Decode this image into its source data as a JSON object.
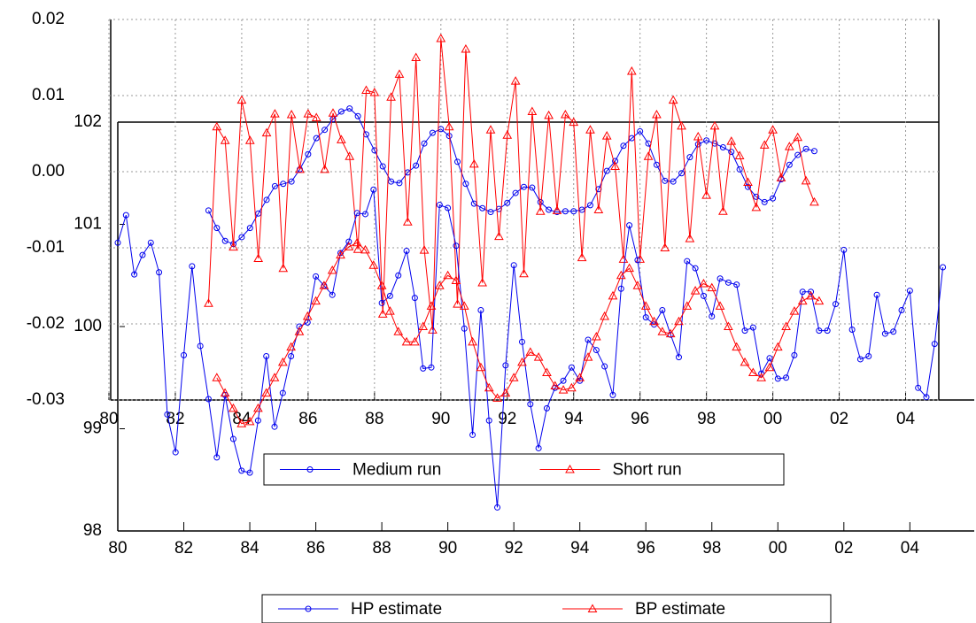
{
  "chart_data": [
    {
      "type": "line",
      "xlim": [
        1980,
        2005.95
      ],
      "ylim": [
        98,
        102
      ],
      "xticks": [
        {
          "value": 1980,
          "label": "80"
        },
        {
          "value": 1982,
          "label": "82"
        },
        {
          "value": 1984,
          "label": "84"
        },
        {
          "value": 1986,
          "label": "86"
        },
        {
          "value": 1988,
          "label": "88"
        },
        {
          "value": 1990,
          "label": "90"
        },
        {
          "value": 1992,
          "label": "92"
        },
        {
          "value": 1994,
          "label": "94"
        },
        {
          "value": 1996,
          "label": "96"
        },
        {
          "value": 1998,
          "label": "98"
        },
        {
          "value": 2000,
          "label": "00"
        },
        {
          "value": 2002,
          "label": "02"
        },
        {
          "value": 2004,
          "label": "04"
        }
      ],
      "yticks": [
        98,
        99,
        100,
        101,
        102
      ],
      "grid": false,
      "series": [
        {
          "name": "HP estimate",
          "color": "#0000ee",
          "marker": "circle",
          "x": [
            1980,
            1980.25,
            1980.5,
            1980.75,
            1981,
            1981.25,
            1981.5,
            1981.75,
            1982,
            1982.25,
            1982.5,
            1982.75,
            1983,
            1983.25,
            1983.5,
            1983.75,
            1984,
            1984.25,
            1984.5,
            1984.75,
            1985,
            1985.25,
            1985.5,
            1985.75,
            1986,
            1986.25,
            1986.5,
            1986.75,
            1987,
            1987.25,
            1987.5,
            1987.75,
            1988,
            1988.25,
            1988.5,
            1988.75,
            1989,
            1989.25,
            1989.5,
            1989.75,
            1990,
            1990.25,
            1990.5,
            1990.75,
            1991,
            1991.25,
            1991.5,
            1991.75,
            1992,
            1992.25,
            1992.5,
            1992.75,
            1993,
            1993.25,
            1993.5,
            1993.75,
            1994,
            1994.25,
            1994.5,
            1994.75,
            1995,
            1995.25,
            1995.5,
            1995.75,
            1996,
            1996.25,
            1996.5,
            1996.75,
            1997,
            1997.25,
            1997.5,
            1997.75,
            1998,
            1998.25,
            1998.5,
            1998.75,
            1999,
            1999.25,
            1999.5,
            1999.75,
            2000,
            2000.25,
            2000.5,
            2000.75,
            2001,
            2001.25,
            2001.5,
            2001.75,
            2002,
            2002.25,
            2002.5,
            2002.75,
            2003,
            2003.25,
            2003.5,
            2003.75,
            2004,
            2004.25,
            2004.5,
            2004.75,
            2005
          ],
          "values": [
            100.82,
            101.09,
            100.51,
            100.7,
            100.82,
            100.53,
            99.14,
            98.77,
            99.72,
            100.59,
            99.81,
            99.29,
            98.72,
            99.33,
            98.9,
            98.59,
            98.57,
            99.08,
            99.71,
            99.02,
            99.35,
            99.71,
            100.0,
            100.04,
            100.49,
            100.4,
            100.31,
            100.72,
            100.83,
            101.11,
            101.1,
            101.34,
            100.23,
            100.3,
            100.5,
            100.74,
            100.28,
            99.59,
            99.6,
            101.19,
            101.16,
            100.79,
            99.98,
            98.94,
            100.16,
            99.08,
            98.23,
            99.62,
            100.6,
            99.85,
            99.24,
            98.81,
            99.2,
            99.4,
            99.47,
            99.6,
            99.47,
            99.87,
            99.77,
            99.61,
            99.33,
            100.37,
            100.99,
            100.65,
            100.09,
            100.02,
            100.16,
            99.92,
            99.7,
            100.64,
            100.57,
            100.3,
            100.1,
            100.47,
            100.43,
            100.41,
            99.96,
            99.99,
            99.54,
            99.69,
            99.49,
            99.5,
            99.72,
            100.34,
            100.34,
            99.96,
            99.96,
            100.22,
            100.75,
            99.97,
            99.68,
            99.71,
            100.31,
            99.93,
            99.95,
            100.16,
            100.35,
            99.4,
            99.31,
            99.83,
            100.58
          ]
        },
        {
          "name": "BP estimate",
          "color": "#ff0000",
          "marker": "triangle",
          "x": [
            1983,
            1983.25,
            1983.5,
            1983.75,
            1984,
            1984.25,
            1984.5,
            1984.75,
            1985,
            1985.25,
            1985.5,
            1985.75,
            1986,
            1986.25,
            1986.5,
            1986.75,
            1987,
            1987.25,
            1987.5,
            1987.75,
            1988,
            1988.25,
            1988.5,
            1988.75,
            1989,
            1989.25,
            1989.5,
            1989.75,
            1990,
            1990.25,
            1990.5,
            1990.75,
            1991,
            1991.25,
            1991.5,
            1991.75,
            1992,
            1992.25,
            1992.5,
            1992.75,
            1993,
            1993.25,
            1993.5,
            1993.75,
            1994,
            1994.25,
            1994.5,
            1994.75,
            1995,
            1995.25,
            1995.5,
            1995.75,
            1996,
            1996.25,
            1996.5,
            1996.75,
            1997,
            1997.25,
            1997.5,
            1997.75,
            1998,
            1998.25,
            1998.5,
            1998.75,
            1999,
            1999.25,
            1999.5,
            1999.75,
            2000,
            2000.25,
            2000.5,
            2000.75,
            2001,
            2001.25
          ],
          "values": [
            99.5,
            99.35,
            99.2,
            99.05,
            99.07,
            99.2,
            99.35,
            99.5,
            99.65,
            99.8,
            99.95,
            100.1,
            100.25,
            100.4,
            100.55,
            100.7,
            100.78,
            100.82,
            100.75,
            100.6,
            100.4,
            100.15,
            99.95,
            99.85,
            99.85,
            100.0,
            100.2,
            100.4,
            100.5,
            100.45,
            100.2,
            99.85,
            99.6,
            99.4,
            99.3,
            99.35,
            99.5,
            99.65,
            99.75,
            99.7,
            99.55,
            99.42,
            99.38,
            99.4,
            99.5,
            99.7,
            99.9,
            100.1,
            100.3,
            100.5,
            100.57,
            100.4,
            100.2,
            100.05,
            99.95,
            99.93,
            100.05,
            100.2,
            100.35,
            100.42,
            100.38,
            100.2,
            100.0,
            99.8,
            99.65,
            99.55,
            99.5,
            99.6,
            99.8,
            100.0,
            100.15,
            100.25,
            100.3,
            100.25
          ]
        }
      ]
    },
    {
      "type": "line",
      "xlim": [
        1980,
        2005
      ],
      "ylim": [
        -0.03,
        0.02
      ],
      "xticks": [
        {
          "value": 1980,
          "label": "80"
        },
        {
          "value": 1982,
          "label": "82"
        },
        {
          "value": 1984,
          "label": "84"
        },
        {
          "value": 1986,
          "label": "86"
        },
        {
          "value": 1988,
          "label": "88"
        },
        {
          "value": 1990,
          "label": "90"
        },
        {
          "value": 1992,
          "label": "92"
        },
        {
          "value": 1994,
          "label": "94"
        },
        {
          "value": 1996,
          "label": "96"
        },
        {
          "value": 1998,
          "label": "98"
        },
        {
          "value": 2000,
          "label": "00"
        },
        {
          "value": 2002,
          "label": "02"
        },
        {
          "value": 2004,
          "label": "04"
        }
      ],
      "yticks": [
        -0.03,
        -0.02,
        -0.01,
        {
          "value": 0,
          "label": "0.00"
        },
        0.01,
        0.02
      ],
      "grid": true,
      "series": [
        {
          "name": "Medium run",
          "color": "#0000ee",
          "marker": "circle",
          "x": [
            1983,
            1983.25,
            1983.5,
            1983.75,
            1984,
            1984.25,
            1984.5,
            1984.75,
            1985,
            1985.25,
            1985.5,
            1985.75,
            1986,
            1986.25,
            1986.5,
            1986.75,
            1987,
            1987.25,
            1987.5,
            1987.75,
            1988,
            1988.25,
            1988.5,
            1988.75,
            1989,
            1989.25,
            1989.5,
            1989.75,
            1990,
            1990.25,
            1990.5,
            1990.75,
            1991,
            1991.25,
            1991.5,
            1991.75,
            1992,
            1992.25,
            1992.5,
            1992.75,
            1993,
            1993.25,
            1993.5,
            1993.75,
            1994,
            1994.25,
            1994.5,
            1994.75,
            1995,
            1995.25,
            1995.5,
            1995.75,
            1996,
            1996.25,
            1996.5,
            1996.75,
            1997,
            1997.25,
            1997.5,
            1997.75,
            1998,
            1998.25,
            1998.5,
            1998.75,
            1999,
            1999.25,
            1999.5,
            1999.75,
            2000,
            2000.25,
            2000.5,
            2000.75,
            2001,
            2001.25
          ],
          "values": [
            -0.0051,
            -0.0074,
            -0.0091,
            -0.0095,
            -0.0086,
            -0.0074,
            -0.0055,
            -0.0037,
            -0.0019,
            -0.0016,
            -0.0013,
            0.0003,
            0.0023,
            0.0044,
            0.0055,
            0.0069,
            0.0079,
            0.0083,
            0.0073,
            0.0049,
            0.0028,
            0.0007,
            -0.0013,
            -0.0015,
            -0.0001,
            0.0008,
            0.0037,
            0.0051,
            0.0056,
            0.0047,
            0.0013,
            -0.0016,
            -0.0042,
            -0.0048,
            -0.0053,
            -0.0049,
            -0.0041,
            -0.0028,
            -0.002,
            -0.0021,
            -0.004,
            -0.005,
            -0.0053,
            -0.0052,
            -0.0052,
            -0.005,
            -0.0044,
            -0.0023,
            0.0001,
            0.0014,
            0.0034,
            0.0044,
            0.0053,
            0.0037,
            0.0009,
            -0.0012,
            -0.0013,
            -0.0002,
            0.0019,
            0.0036,
            0.0041,
            0.0037,
            0.0032,
            0.0026,
            0.0003,
            -0.002,
            -0.0033,
            -0.004,
            -0.0035,
            -0.001,
            0.0009,
            0.0022,
            0.003,
            0.0027
          ]
        },
        {
          "name": "Short run",
          "color": "#ff0000",
          "marker": "triangle",
          "x": [
            1983,
            1983.25,
            1983.5,
            1983.75,
            1984,
            1984.25,
            1984.5,
            1984.75,
            1985,
            1985.25,
            1985.5,
            1985.75,
            1986,
            1986.25,
            1986.5,
            1986.75,
            1987,
            1987.25,
            1987.5,
            1987.75,
            1988,
            1988.25,
            1988.5,
            1988.75,
            1989,
            1989.25,
            1989.5,
            1989.75,
            1990,
            1990.25,
            1990.5,
            1990.75,
            1991,
            1991.25,
            1991.5,
            1991.75,
            1992,
            1992.25,
            1992.5,
            1992.75,
            1993,
            1993.25,
            1993.5,
            1993.75,
            1994,
            1994.25,
            1994.5,
            1994.75,
            1995,
            1995.25,
            1995.5,
            1995.75,
            1996,
            1996.25,
            1996.5,
            1996.75,
            1997,
            1997.25,
            1997.5,
            1997.75,
            1998,
            1998.25,
            1998.5,
            1998.75,
            1999,
            1999.25,
            1999.5,
            1999.75,
            2000,
            2000.25,
            2000.5,
            2000.75,
            2001,
            2001.25
          ],
          "values": [
            -0.0173,
            0.0059,
            0.0041,
            -0.0099,
            0.0094,
            0.0041,
            -0.0114,
            0.0051,
            0.0076,
            -0.0127,
            0.0075,
            0.0003,
            0.0076,
            0.0071,
            0.0003,
            0.0077,
            0.0042,
            0.002,
            -0.0102,
            0.0107,
            0.0104,
            -0.0187,
            0.0098,
            0.0128,
            -0.0066,
            0.015,
            -0.0103,
            -0.0208,
            0.0175,
            0.0059,
            -0.0174,
            0.0161,
            0.001,
            -0.0146,
            0.0055,
            -0.0085,
            0.0048,
            0.0119,
            -0.0134,
            0.0079,
            -0.0052,
            0.0074,
            -0.0051,
            0.0075,
            0.0065,
            -0.0113,
            0.0055,
            -0.005,
            0.0047,
            0.0007,
            -0.0115,
            0.0132,
            -0.0115,
            0.002,
            0.0075,
            -0.01,
            0.0094,
            0.006,
            -0.0088,
            0.0046,
            -0.0031,
            0.006,
            -0.0052,
            0.004,
            0.0021,
            -0.0014,
            -0.0047,
            0.0035,
            0.0055,
            -0.0008,
            0.0033,
            0.0045,
            -0.0012,
            -0.004
          ]
        }
      ]
    }
  ]
}
